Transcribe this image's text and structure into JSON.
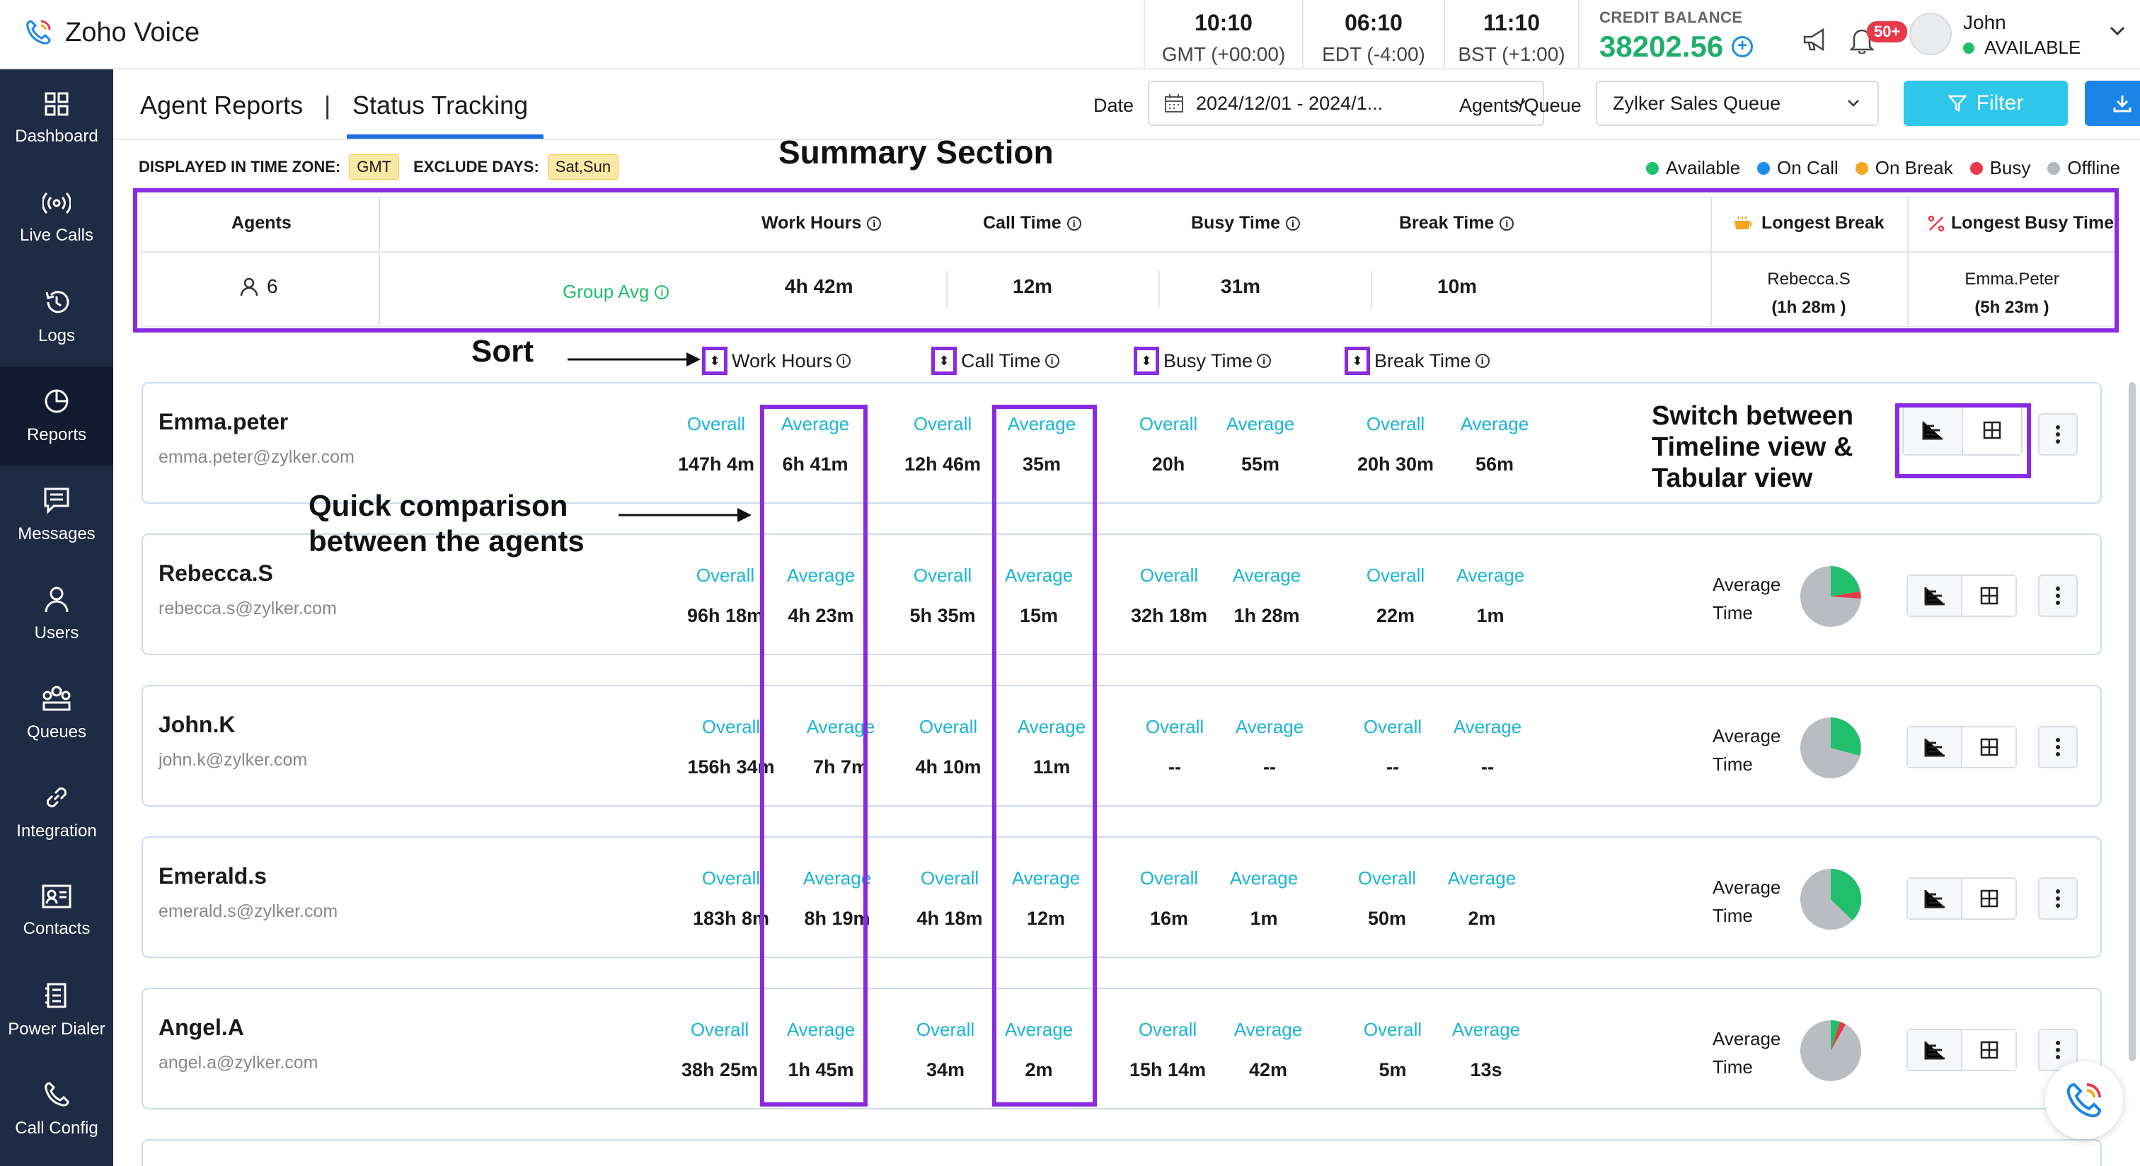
{
  "app": {
    "name": "Zoho Voice"
  },
  "clocks": [
    {
      "time": "10:10",
      "zone": "GMT (+00:00)"
    },
    {
      "time": "06:10",
      "zone": "EDT (-4:00)"
    },
    {
      "time": "11:10",
      "zone": "BST (+1:00)"
    }
  ],
  "credit": {
    "label": "CREDIT BALANCE",
    "amount": "38202.56"
  },
  "notifications": {
    "badge": "50+"
  },
  "user": {
    "name": "John",
    "status": "AVAILABLE"
  },
  "sidebar": {
    "items": [
      {
        "label": "Dashboard",
        "icon": "dashboard-icon"
      },
      {
        "label": "Live Calls",
        "icon": "live-calls-icon"
      },
      {
        "label": "Logs",
        "icon": "logs-icon"
      },
      {
        "label": "Reports",
        "icon": "reports-icon",
        "active": true
      },
      {
        "label": "Messages",
        "icon": "messages-icon"
      },
      {
        "label": "Users",
        "icon": "users-icon"
      },
      {
        "label": "Queues",
        "icon": "queues-icon"
      },
      {
        "label": "Integration",
        "icon": "integration-icon"
      },
      {
        "label": "Contacts",
        "icon": "contacts-icon"
      },
      {
        "label": "Power Dialer",
        "icon": "power-dialer-icon"
      },
      {
        "label": "Call Config",
        "icon": "call-config-icon"
      }
    ]
  },
  "tabs": {
    "agent_reports": "Agent Reports",
    "separator": "|",
    "status_tracking": "Status Tracking"
  },
  "filters": {
    "date_label": "Date",
    "date_value": "2024/12/01 - 2024/1...",
    "agents_label": "Agents/Queue",
    "queue_value": "Zylker Sales Queue",
    "filter_button": "Filter"
  },
  "timezone": {
    "label": "DISPLAYED IN TIME ZONE:",
    "value": "GMT",
    "exclude_label": "EXCLUDE DAYS:",
    "exclude_value": "Sat,Sun"
  },
  "legend": [
    {
      "label": "Available",
      "color": "#1fbf6b"
    },
    {
      "label": "On Call",
      "color": "#1a8ee8"
    },
    {
      "label": "On Break",
      "color": "#f5a623"
    },
    {
      "label": "Busy",
      "color": "#e8394a"
    },
    {
      "label": "Offline",
      "color": "#b5b8bd"
    }
  ],
  "annotations": {
    "summary": "Summary Section",
    "sort": "Sort",
    "quick_line1": "Quick comparison",
    "quick_line2": "between the agents",
    "switch_line1": "Switch between",
    "switch_line2": "Timeline view &",
    "switch_line3": "Tabular view"
  },
  "summary": {
    "agents_header": "Agents",
    "agents_count": "6",
    "group_avg": "Group Avg",
    "work_hours": {
      "label": "Work Hours",
      "value": "4h 42m"
    },
    "call_time": {
      "label": "Call Time",
      "value": "12m"
    },
    "busy_time": {
      "label": "Busy Time",
      "value": "31m"
    },
    "break_time": {
      "label": "Break Time",
      "value": "10m"
    },
    "longest_break": {
      "label": "Longest Break",
      "name": "Rebecca.S",
      "value": "(1h 28m )"
    },
    "longest_busy": {
      "label": "Longest Busy Time",
      "name": "Emma.Peter",
      "value": "(5h 23m )"
    }
  },
  "sort_columns": [
    "Work Hours",
    "Call Time",
    "Busy Time",
    "Break Time"
  ],
  "labels": {
    "overall": "Overall",
    "average": "Average",
    "average_time_1": "Average",
    "average_time_2": "Time"
  },
  "agents": [
    {
      "name": "Emma.peter",
      "email": "emma.peter@zylker.com",
      "work": [
        "147h 4m",
        "6h 41m"
      ],
      "call": [
        "12h 46m",
        "35m"
      ],
      "busy": [
        "20h",
        "55m"
      ],
      "brk": [
        "20h 30m",
        "56m"
      ]
    },
    {
      "name": "Rebecca.S",
      "email": "rebecca.s@zylker.com",
      "work": [
        "96h 18m",
        "4h 23m"
      ],
      "call": [
        "5h 35m",
        "15m"
      ],
      "busy": [
        "32h 18m",
        "1h 28m"
      ],
      "brk": [
        "22m",
        "1m"
      ]
    },
    {
      "name": "John.K",
      "email": "john.k@zylker.com",
      "work": [
        "156h 34m",
        "7h 7m"
      ],
      "call": [
        "4h 10m",
        "11m"
      ],
      "busy": [
        "--",
        "--"
      ],
      "brk": [
        "--",
        "--"
      ]
    },
    {
      "name": "Emerald.s",
      "email": "emerald.s@zylker.com",
      "work": [
        "183h 8m",
        "8h 19m"
      ],
      "call": [
        "4h 18m",
        "12m"
      ],
      "busy": [
        "16m",
        "1m"
      ],
      "brk": [
        "50m",
        "2m"
      ]
    },
    {
      "name": "Angel.A",
      "email": "angel.a@zylker.com",
      "work": [
        "38h 25m",
        "1h 45m"
      ],
      "call": [
        "34m",
        "2m"
      ],
      "busy": [
        "15h 14m",
        "42m"
      ],
      "brk": [
        "5m",
        "13s"
      ]
    }
  ]
}
